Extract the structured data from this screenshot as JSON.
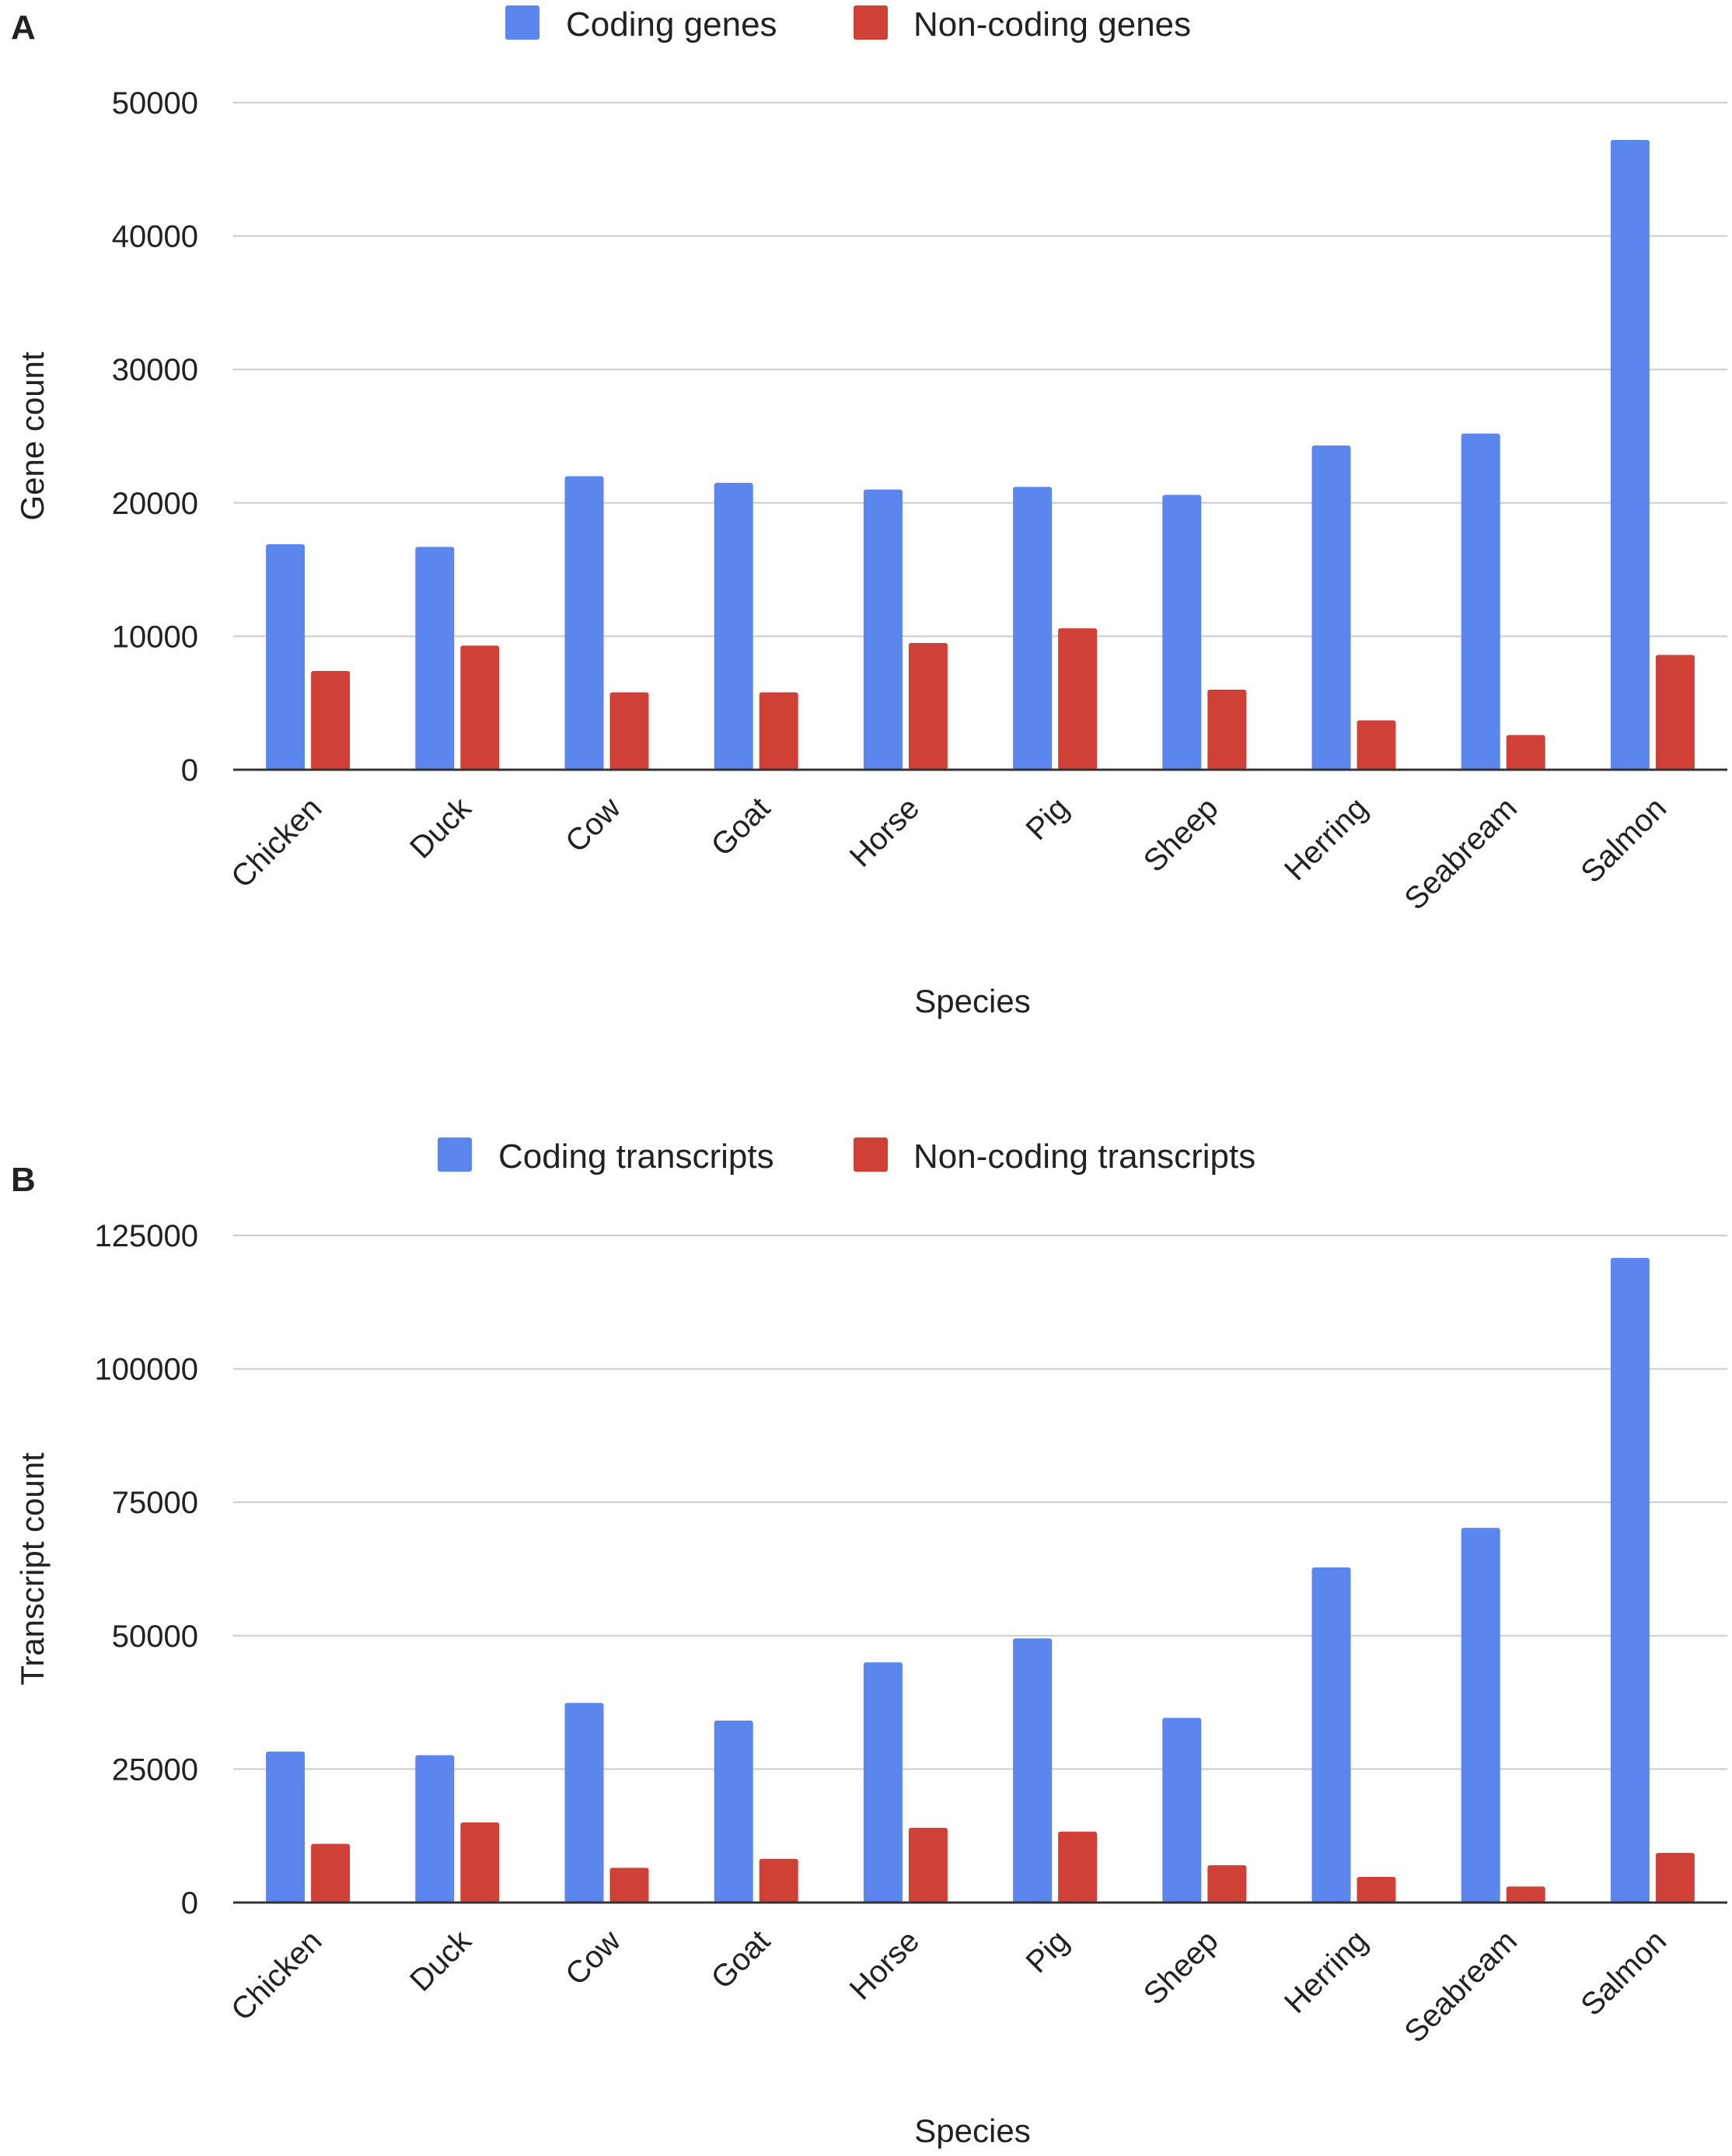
{
  "colors": {
    "coding": "#5b86ee",
    "noncoding": "#cf4137",
    "grid": "#cccccc",
    "axis": "#333333"
  },
  "chart_data": [
    {
      "type": "bar",
      "panel": "A",
      "categories": [
        "Chicken",
        "Duck",
        "Cow",
        "Goat",
        "Horse",
        "Pig",
        "Sheep",
        "Herring",
        "Seabream",
        "Salmon"
      ],
      "series": [
        {
          "name": "Coding genes",
          "values": [
            16900,
            16700,
            22000,
            21500,
            21000,
            21200,
            20600,
            24300,
            25200,
            47200
          ]
        },
        {
          "name": "Non-coding genes",
          "values": [
            7400,
            9300,
            5800,
            5800,
            9500,
            10600,
            6000,
            3700,
            2600,
            8600
          ]
        }
      ],
      "xlabel": "Species",
      "ylabel": "Gene count",
      "ylim": [
        0,
        50000
      ],
      "yticks": [
        0,
        10000,
        20000,
        30000,
        40000,
        50000
      ],
      "ytick_labels": [
        "0",
        "10000",
        "20000",
        "30000",
        "40000",
        "50000"
      ],
      "legend": "top-center",
      "grid": true
    },
    {
      "type": "bar",
      "panel": "B",
      "categories": [
        "Chicken",
        "Duck",
        "Cow",
        "Goat",
        "Horse",
        "Pig",
        "Sheep",
        "Herring",
        "Seabream",
        "Salmon"
      ],
      "series": [
        {
          "name": "Coding transcripts",
          "values": [
            28300,
            27600,
            37400,
            34100,
            45000,
            49500,
            34600,
            62800,
            70200,
            120800
          ]
        },
        {
          "name": "Non-coding transcripts",
          "values": [
            11000,
            15000,
            6500,
            8200,
            14000,
            13300,
            7000,
            4800,
            3000,
            9300
          ]
        }
      ],
      "xlabel": "Species",
      "ylabel": "Transcript count",
      "ylim": [
        0,
        125000
      ],
      "yticks": [
        0,
        25000,
        50000,
        75000,
        100000,
        125000
      ],
      "ytick_labels": [
        "0",
        "25000",
        "50000",
        "75000",
        "100000",
        "125000"
      ],
      "legend": "top-center",
      "grid": true
    }
  ]
}
